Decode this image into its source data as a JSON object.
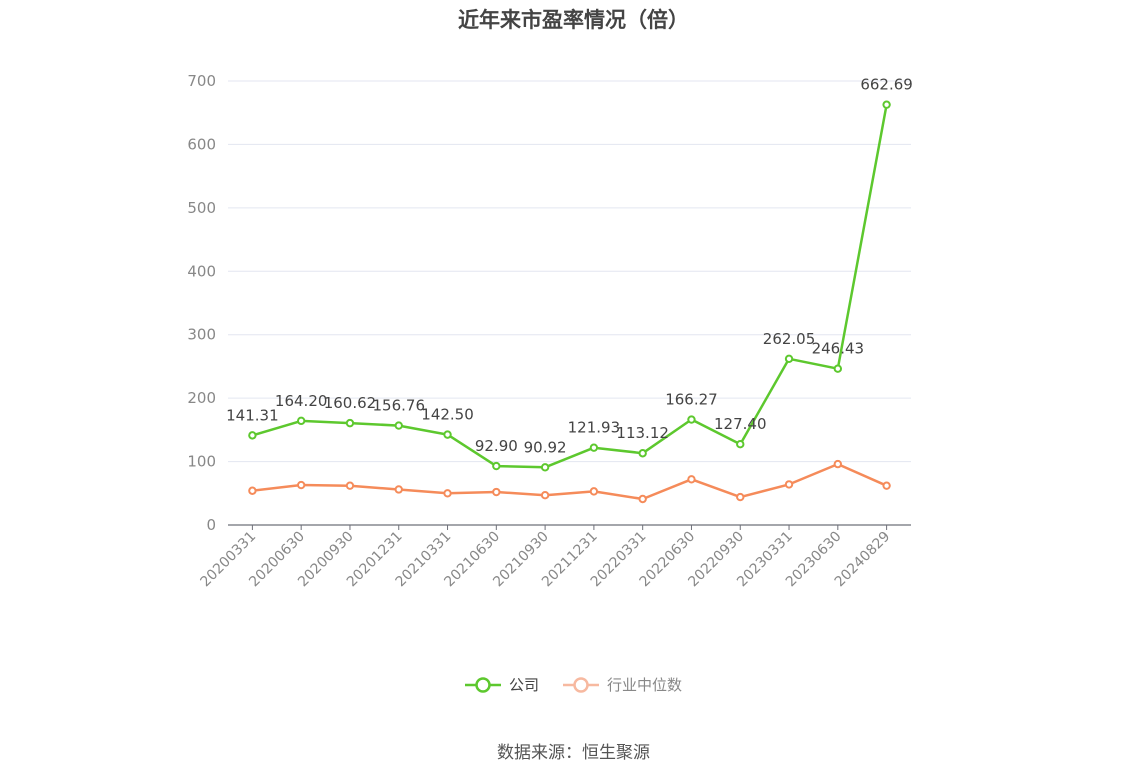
{
  "chart_data": {
    "type": "line",
    "title": "近年来市盈率情况（倍）",
    "categories": [
      "20200331",
      "20200630",
      "20200930",
      "20201231",
      "20210331",
      "20210630",
      "20210930",
      "20211231",
      "20220331",
      "20220630",
      "20220930",
      "20230331",
      "20230630",
      "20240829"
    ],
    "series": [
      {
        "name": "公司",
        "color": "#5dc82e",
        "values": [
          141.31,
          164.2,
          160.62,
          156.76,
          142.5,
          92.9,
          90.92,
          121.93,
          113.12,
          166.27,
          127.4,
          262.05,
          246.43,
          662.69
        ],
        "labels": [
          "141.31",
          "164.20",
          "160.62",
          "156.76",
          "142.50",
          "92.90",
          "90.92",
          "121.93",
          "113.12",
          "166.27",
          "127.40",
          "262.05",
          "246.43",
          "662.69"
        ]
      },
      {
        "name": "行业中位数",
        "color": "#f58b5a",
        "values": [
          54,
          63,
          62,
          56,
          50,
          52,
          47,
          53,
          41,
          72,
          44,
          64,
          96,
          62
        ]
      }
    ],
    "ylim": [
      0,
      700
    ],
    "yticks": [
      "0",
      "100",
      "200",
      "300",
      "400",
      "500",
      "600",
      "700"
    ],
    "grid": true,
    "legend_position": "bottom-center"
  },
  "source": "数据来源：恒生聚源"
}
